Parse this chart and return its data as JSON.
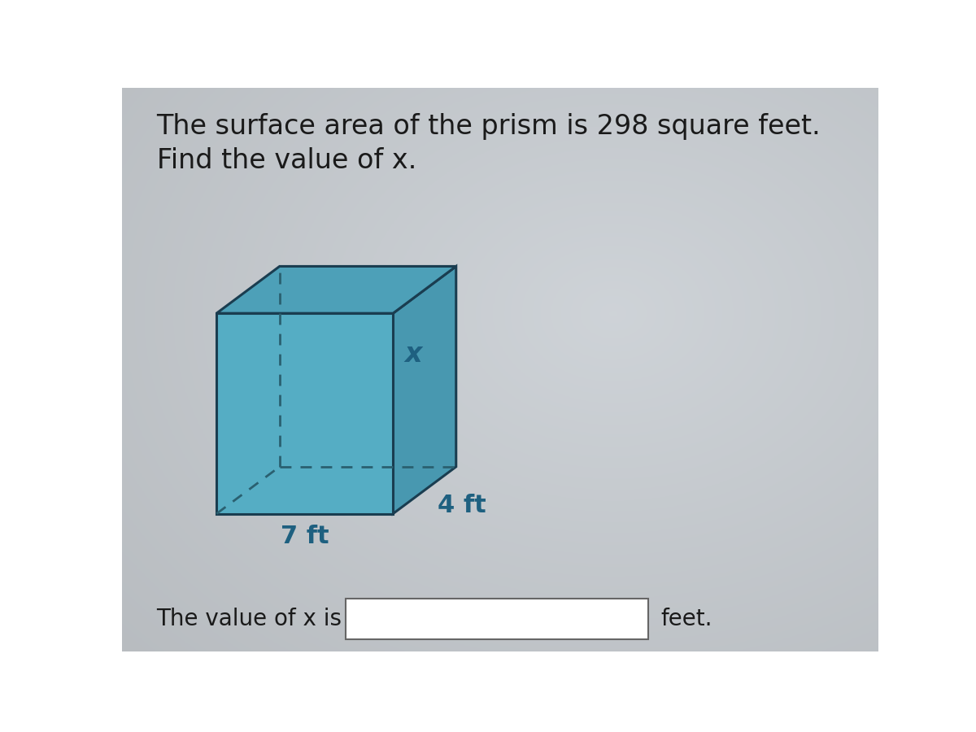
{
  "title_line1": "The surface area of the prism is 298 square feet.",
  "title_line2": "Find the value of x.",
  "label_x": "x",
  "label_4ft": "4 ft",
  "label_7ft": "7 ft",
  "bottom_text": "The value of x is",
  "bottom_suffix": "feet.",
  "bg_color": "#c8cdd0",
  "bg_center_color": "#dde2e5",
  "face_color_front": "#55adc4",
  "face_color_top": "#4da0b8",
  "face_color_right": "#4898b0",
  "edge_color": "#1a3d50",
  "dashed_color": "#2a6070",
  "text_color_labels": "#1e6080",
  "text_color_main": "#1a1a1a",
  "font_size_title": 24,
  "font_size_labels": 22,
  "font_size_x": 24,
  "font_size_bottom": 20,
  "prism_bx": 1.5,
  "prism_by": 2.2,
  "prism_bw": 2.8,
  "prism_bh": 3.2,
  "prism_ox": 1.0,
  "prism_oy": 0.75
}
